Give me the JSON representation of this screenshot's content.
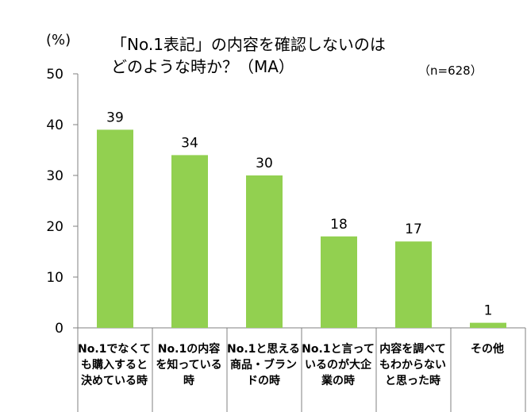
{
  "chart_data": {
    "type": "bar",
    "title_line1": "「No.1表記」の内容を確認しないのは",
    "title_line2": "どのような時か？（MA）",
    "y_unit": "(%)",
    "sample_size": "（n=628）",
    "categories": [
      "No.1でなくても購入すると決めている時",
      "No.1の内容を知っている時",
      "No.1と思える商品・ブランドの時",
      "No.1と言っているのが大企業の時",
      "内容を調べてもわからないと思った時",
      "その他"
    ],
    "values": [
      39,
      34,
      30,
      18,
      17,
      1
    ],
    "value_labels": [
      "39",
      "34",
      "30",
      "18",
      "17",
      "1"
    ],
    "yticks": [
      "0",
      "10",
      "20",
      "30",
      "40",
      "50"
    ],
    "ylim": [
      0,
      50
    ],
    "bar_color": "#92d050",
    "grid": false,
    "legend": "none"
  }
}
